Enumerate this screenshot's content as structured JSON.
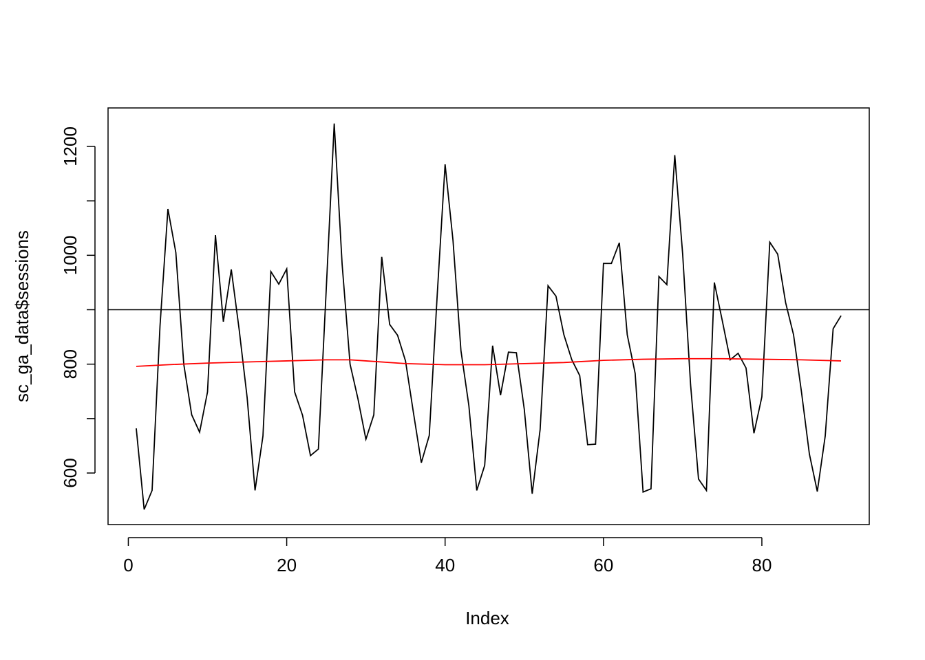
{
  "chart_data": {
    "type": "line",
    "xlabel": "Index",
    "ylabel": "sc_ga_data$sessions",
    "xlim": [
      -2.56,
      93.56
    ],
    "ylim": [
      505.3,
      1270.7
    ],
    "xticks": [
      0,
      20,
      40,
      60,
      80
    ],
    "yticks": [
      600,
      800,
      1000,
      1200
    ],
    "yminor_ticks": [
      700,
      900,
      1100
    ],
    "hline": 900,
    "hline_color": "#000000",
    "series": [
      {
        "color": "#000000",
        "x": [
          1,
          2,
          3,
          4,
          5,
          6,
          7,
          8,
          9,
          10,
          11,
          12,
          13,
          14,
          15,
          16,
          17,
          18,
          19,
          20,
          21,
          22,
          23,
          24,
          25,
          26,
          27,
          28,
          29,
          30,
          31,
          32,
          33,
          34,
          35,
          36,
          37,
          38,
          39,
          40,
          41,
          42,
          43,
          44,
          45,
          46,
          47,
          48,
          49,
          50,
          51,
          52,
          53,
          54,
          55,
          56,
          57,
          58,
          59,
          60,
          61,
          62,
          63,
          64,
          65,
          66,
          67,
          68,
          69,
          70,
          71,
          72,
          73,
          74,
          75,
          76,
          77,
          78,
          79,
          80,
          81,
          82,
          83,
          84,
          85,
          86,
          87,
          88,
          89,
          90
        ],
        "values": [
          682,
          533,
          568,
          870,
          1085,
          1005,
          800,
          707,
          675,
          749,
          1037,
          878,
          974,
          863,
          739,
          568,
          668,
          970,
          947,
          975,
          749,
          706,
          632,
          644,
          940,
          1242,
          983,
          800,
          736,
          662,
          707,
          997,
          873,
          853,
          806,
          711,
          619,
          669,
          926,
          1167,
          1027,
          825,
          724,
          568,
          614,
          834,
          743,
          822,
          821,
          717,
          562,
          680,
          944,
          925,
          854,
          808,
          779,
          652,
          653,
          985,
          985,
          1023,
          854,
          783,
          565,
          571,
          961,
          946,
          1184,
          1002,
          762,
          589,
          568,
          950,
          880,
          808,
          820,
          793,
          673,
          740,
          1024,
          1002,
          913,
          854,
          749,
          635,
          566,
          668,
          865,
          889
        ]
      },
      {
        "color": "#ff0000",
        "x": [
          1,
          5,
          10,
          15,
          20,
          25,
          28,
          30,
          35,
          40,
          45,
          50,
          55,
          60,
          65,
          70,
          75,
          80,
          85,
          90
        ],
        "values": [
          796,
          799,
          802,
          804,
          806,
          808,
          808,
          806,
          801,
          799,
          799,
          801,
          803,
          807,
          809,
          810,
          810,
          809,
          808,
          806
        ]
      }
    ]
  }
}
